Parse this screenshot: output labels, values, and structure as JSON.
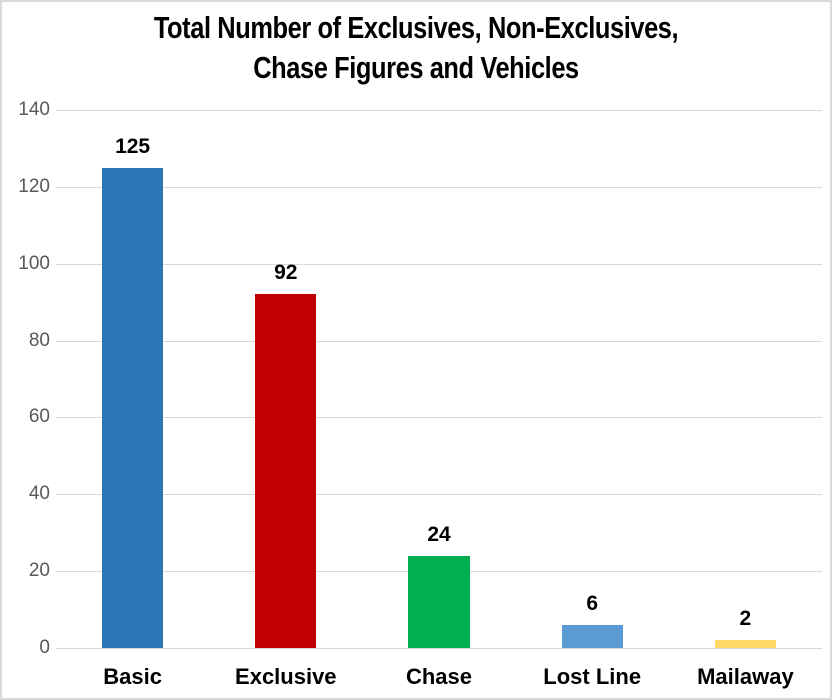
{
  "title_lines": [
    "Total Number of Exclusives, Non-Exclusives,",
    "Chase Figures and Vehicles"
  ],
  "chart_data": {
    "type": "bar",
    "title": "Total Number of Exclusives, Non-Exclusives, Chase Figures and Vehicles",
    "categories": [
      "Basic",
      "Exclusive",
      "Chase",
      "Lost Line",
      "Mailaway"
    ],
    "values": [
      125,
      92,
      24,
      6,
      2
    ],
    "data_labels": [
      "125",
      "92",
      "24",
      "6",
      "2"
    ],
    "bar_colors": [
      "#2E75B6",
      "#C00000",
      "#00B050",
      "#5B9BD5",
      "#FFD966"
    ],
    "ylim": [
      0,
      140
    ],
    "yticks": [
      0,
      20,
      40,
      60,
      80,
      100,
      120,
      140
    ],
    "xlabel": "",
    "ylabel": "",
    "grid": true,
    "legend": false,
    "bar_gap_ratio": 1.5
  },
  "styles": {
    "grid_color": "#d9d9d9",
    "axis_tick_color": "#595959",
    "label_color": "#000000",
    "background": "#ffffff",
    "border_color": "#d9d9d9"
  }
}
